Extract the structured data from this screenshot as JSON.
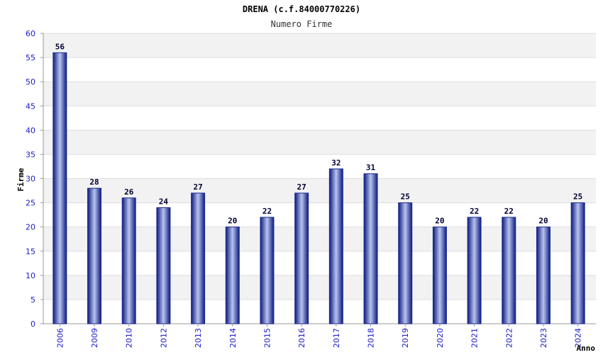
{
  "chart_data": {
    "type": "bar",
    "title": "DRENA (c.f.84000770226)",
    "subtitle": "Numero Firme",
    "xlabel": "Anno",
    "ylabel": "Firme",
    "categories": [
      "2006",
      "2009",
      "2010",
      "2012",
      "2013",
      "2014",
      "2015",
      "2016",
      "2017",
      "2018",
      "2019",
      "2020",
      "2021",
      "2022",
      "2023",
      "2024"
    ],
    "values": [
      56,
      28,
      26,
      24,
      27,
      20,
      22,
      27,
      32,
      31,
      25,
      20,
      22,
      22,
      20,
      25
    ],
    "ylim": [
      0,
      60
    ],
    "yticks": [
      "0",
      "5",
      "10",
      "15",
      "20",
      "25",
      "30",
      "35",
      "40",
      "45",
      "50",
      "55",
      "60"
    ],
    "grid": true,
    "bar_color": "#1c2a8c",
    "band_color": "#f2f2f2",
    "tick_color": "#1a1acc"
  }
}
